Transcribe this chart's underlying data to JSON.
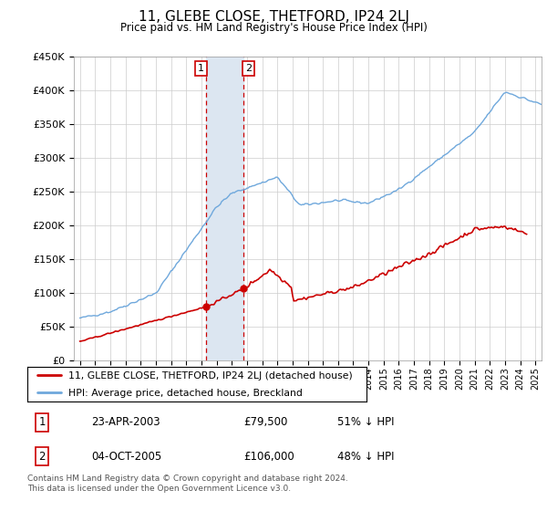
{
  "title": "11, GLEBE CLOSE, THETFORD, IP24 2LJ",
  "subtitle": "Price paid vs. HM Land Registry's House Price Index (HPI)",
  "footer": "Contains HM Land Registry data © Crown copyright and database right 2024.\nThis data is licensed under the Open Government Licence v3.0.",
  "legend_line1": "11, GLEBE CLOSE, THETFORD, IP24 2LJ (detached house)",
  "legend_line2": "HPI: Average price, detached house, Breckland",
  "transaction1_date": "23-APR-2003",
  "transaction1_price": "£79,500",
  "transaction1_hpi": "51% ↓ HPI",
  "transaction2_date": "04-OCT-2005",
  "transaction2_price": "£106,000",
  "transaction2_hpi": "48% ↓ HPI",
  "hpi_color": "#6fa8dc",
  "price_color": "#cc0000",
  "highlight_color": "#dce6f1",
  "highlight_border": "#cc0000",
  "ylim": [
    0,
    450000
  ],
  "yticks": [
    0,
    50000,
    100000,
    150000,
    200000,
    250000,
    300000,
    350000,
    400000,
    450000
  ],
  "ytick_labels": [
    "£0",
    "£50K",
    "£100K",
    "£150K",
    "£200K",
    "£250K",
    "£300K",
    "£350K",
    "£400K",
    "£450K"
  ],
  "xlim_left": 1994.6,
  "xlim_right": 2025.4,
  "transaction1_year": 2003.31,
  "transaction2_year": 2005.75,
  "transaction1_price_val": 79500,
  "transaction2_price_val": 106000
}
